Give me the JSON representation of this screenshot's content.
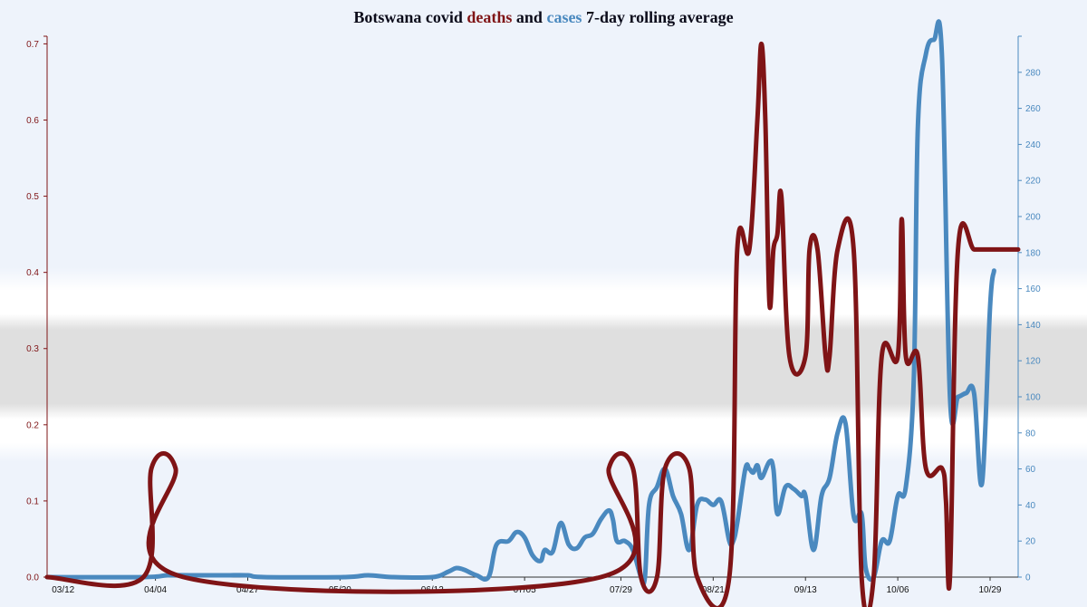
{
  "title": {
    "prefix": "Botswana covid ",
    "deaths_word": "deaths",
    "middle": " and ",
    "cases_word": "cases",
    "suffix": " 7-day rolling average"
  },
  "colors": {
    "deaths": "#7f1416",
    "cases": "#4a89bf",
    "background": "#eef3fb",
    "text": "#0b0b1a"
  },
  "chart_data": {
    "type": "line",
    "x_start": "2020-03-12",
    "x_ticks": [
      "03/12",
      "04/04",
      "04/27",
      "05/20",
      "06/12",
      "07/05",
      "07/29",
      "08/21",
      "09/13",
      "10/06",
      "10/29"
    ],
    "x_tick_offsets_days": [
      0,
      23,
      46,
      69,
      92,
      115,
      139,
      162,
      185,
      208,
      231
    ],
    "x_range_days": [
      -4,
      238
    ],
    "y_left": {
      "label": "",
      "ylim": [
        0,
        0.71
      ],
      "ticks": [
        0.0,
        0.1,
        0.2,
        0.3,
        0.4,
        0.5,
        0.6,
        0.7
      ]
    },
    "y_right": {
      "label": "",
      "ylim": [
        0,
        300
      ],
      "ticks": [
        0,
        20,
        40,
        60,
        80,
        100,
        120,
        140,
        160,
        180,
        200,
        220,
        240,
        260,
        280
      ]
    },
    "grid": false,
    "series": [
      {
        "name": "deaths",
        "axis": "left",
        "points": [
          [
            -4,
            0
          ],
          [
            20,
            0
          ],
          [
            22,
            0.143
          ],
          [
            28,
            0.143
          ],
          [
            30,
            0
          ],
          [
            134,
            0
          ],
          [
            136,
            0.143
          ],
          [
            142,
            0.143
          ],
          [
            144,
            0
          ],
          [
            148,
            0
          ],
          [
            150,
            0.143
          ],
          [
            156,
            0.143
          ],
          [
            158,
            0
          ],
          [
            166,
            0
          ],
          [
            168,
            0.43
          ],
          [
            171,
            0.43
          ],
          [
            173,
            0.6
          ],
          [
            174,
            0.7
          ],
          [
            175,
            0.6
          ],
          [
            176,
            0.36
          ],
          [
            177,
            0.43
          ],
          [
            178,
            0.45
          ],
          [
            179,
            0.5
          ],
          [
            181,
            0.29
          ],
          [
            185,
            0.29
          ],
          [
            186,
            0.43
          ],
          [
            188,
            0.43
          ],
          [
            190,
            0.29
          ],
          [
            191,
            0.29
          ],
          [
            193,
            0.43
          ],
          [
            197,
            0.43
          ],
          [
            199,
            0
          ],
          [
            202,
            0
          ],
          [
            204,
            0.29
          ],
          [
            208,
            0.29
          ],
          [
            209,
            0.47
          ],
          [
            210,
            0.29
          ],
          [
            213,
            0.29
          ],
          [
            215,
            0.143
          ],
          [
            219,
            0.143
          ],
          [
            220,
            0.1
          ],
          [
            221,
            0
          ],
          [
            223,
            0.43
          ],
          [
            227,
            0.43
          ],
          [
            230,
            0.43
          ],
          [
            238,
            0.43
          ]
        ]
      },
      {
        "name": "cases",
        "axis": "right",
        "points": [
          [
            -4,
            0
          ],
          [
            20,
            0
          ],
          [
            26,
            1
          ],
          [
            32,
            1
          ],
          [
            40,
            1
          ],
          [
            46,
            1
          ],
          [
            50,
            0
          ],
          [
            70,
            0
          ],
          [
            76,
            1
          ],
          [
            82,
            0
          ],
          [
            92,
            0
          ],
          [
            96,
            3
          ],
          [
            98,
            5
          ],
          [
            100,
            4
          ],
          [
            103,
            1
          ],
          [
            106,
            0
          ],
          [
            108,
            18
          ],
          [
            111,
            20
          ],
          [
            113,
            25
          ],
          [
            115,
            22
          ],
          [
            117,
            12
          ],
          [
            119,
            9
          ],
          [
            120,
            15
          ],
          [
            122,
            14
          ],
          [
            124,
            30
          ],
          [
            126,
            18
          ],
          [
            128,
            16
          ],
          [
            130,
            22
          ],
          [
            132,
            24
          ],
          [
            134,
            32
          ],
          [
            136,
            37
          ],
          [
            137,
            32
          ],
          [
            138,
            20
          ],
          [
            140,
            20
          ],
          [
            142,
            15
          ],
          [
            144,
            0
          ],
          [
            145,
            0
          ],
          [
            146,
            40
          ],
          [
            148,
            50
          ],
          [
            150,
            60
          ],
          [
            152,
            45
          ],
          [
            154,
            35
          ],
          [
            156,
            15
          ],
          [
            158,
            40
          ],
          [
            160,
            43
          ],
          [
            162,
            40
          ],
          [
            164,
            42
          ],
          [
            166,
            20
          ],
          [
            167,
            20
          ],
          [
            168,
            30
          ],
          [
            170,
            60
          ],
          [
            171,
            60
          ],
          [
            172,
            58
          ],
          [
            173,
            62
          ],
          [
            174,
            55
          ],
          [
            176,
            64
          ],
          [
            177,
            60
          ],
          [
            178,
            35
          ],
          [
            180,
            50
          ],
          [
            182,
            49
          ],
          [
            184,
            45
          ],
          [
            185,
            45
          ],
          [
            187,
            15
          ],
          [
            189,
            45
          ],
          [
            191,
            55
          ],
          [
            193,
            80
          ],
          [
            195,
            85
          ],
          [
            197,
            34
          ],
          [
            199,
            35
          ],
          [
            200,
            5
          ],
          [
            202,
            0
          ],
          [
            204,
            20
          ],
          [
            206,
            20
          ],
          [
            208,
            45
          ],
          [
            210,
            50
          ],
          [
            212,
            110
          ],
          [
            213,
            250
          ],
          [
            215,
            290
          ],
          [
            217,
            298
          ],
          [
            219,
            290
          ],
          [
            221,
            100
          ],
          [
            223,
            100
          ],
          [
            225,
            102
          ],
          [
            227,
            102
          ],
          [
            229,
            52
          ],
          [
            231,
            150
          ],
          [
            232,
            170
          ]
        ]
      }
    ]
  }
}
